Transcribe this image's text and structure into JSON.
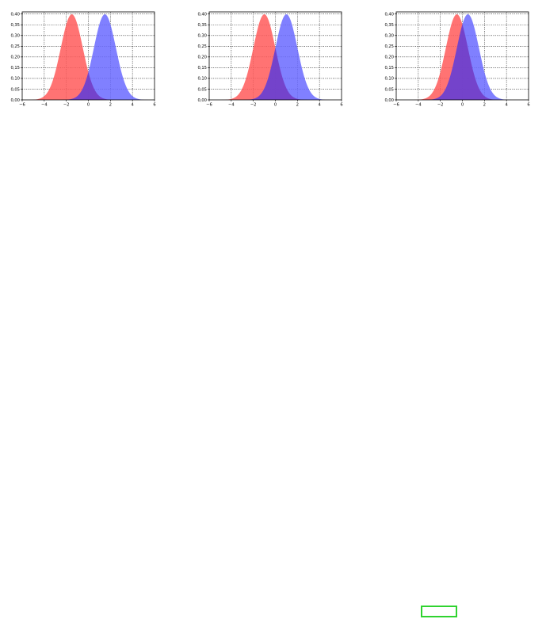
{
  "colors": {
    "curve_a": "#ff5a5a",
    "curve_b": "#6a6aff",
    "overlap": "#6a22b0",
    "frame": "#000000",
    "highlight": "#2fd32f"
  },
  "chart_data": [
    {
      "type": "area",
      "title": "",
      "xlabel": "",
      "ylabel": "",
      "xlim": [
        -6,
        6
      ],
      "ylim": [
        0,
        0.41
      ],
      "grid": true,
      "xticks": [
        -6,
        -4,
        -2,
        0,
        2,
        4,
        6
      ],
      "xtick_labels": [
        "−6",
        "−4",
        "−2",
        "0",
        "2",
        "4",
        "6"
      ],
      "yticks": [
        0,
        0.05,
        0.1,
        0.15,
        0.2,
        0.25,
        0.3,
        0.35,
        0.4
      ],
      "ytick_labels": [
        "0,00",
        "0,05",
        "0,10",
        "0,15",
        "0,20",
        "0,25",
        "0,30",
        "0,35",
        "0,40"
      ],
      "series": [
        {
          "distribution": "normal",
          "mean": -1.5,
          "std": 1,
          "color": "#ff5a5a"
        },
        {
          "distribution": "normal",
          "mean": 1.5,
          "std": 1,
          "color": "#6a6aff"
        }
      ]
    },
    {
      "type": "area",
      "title": "",
      "xlabel": "",
      "ylabel": "",
      "xlim": [
        -6,
        6
      ],
      "ylim": [
        0,
        0.41
      ],
      "grid": true,
      "xticks": [
        -6,
        -4,
        -2,
        0,
        2,
        4,
        6
      ],
      "xtick_labels": [
        "−6",
        "−4",
        "−2",
        "0",
        "2",
        "4",
        "6"
      ],
      "yticks": [
        0,
        0.05,
        0.1,
        0.15,
        0.2,
        0.25,
        0.3,
        0.35,
        0.4
      ],
      "ytick_labels": [
        "0,00",
        "0,05",
        "0,10",
        "0,15",
        "0,20",
        "0,25",
        "0,30",
        "0,35",
        "0,40"
      ],
      "series": [
        {
          "distribution": "normal",
          "mean": -1,
          "std": 1,
          "color": "#ff5a5a"
        },
        {
          "distribution": "normal",
          "mean": 1,
          "std": 1,
          "color": "#6a6aff"
        }
      ]
    },
    {
      "type": "area",
      "title": "",
      "xlabel": "",
      "ylabel": "",
      "xlim": [
        -6,
        6
      ],
      "ylim": [
        0,
        0.41
      ],
      "grid": true,
      "xticks": [
        -6,
        -4,
        -2,
        0,
        2,
        4,
        6
      ],
      "xtick_labels": [
        "−6",
        "−4",
        "−2",
        "0",
        "2",
        "4",
        "6"
      ],
      "yticks": [
        0,
        0.05,
        0.1,
        0.15,
        0.2,
        0.25,
        0.3,
        0.35,
        0.4
      ],
      "ytick_labels": [
        "0,00",
        "0,05",
        "0,10",
        "0,15",
        "0,20",
        "0,25",
        "0,30",
        "0,35",
        "0,40"
      ],
      "series": [
        {
          "distribution": "normal",
          "mean": -0.5,
          "std": 1,
          "color": "#ff5a5a"
        },
        {
          "distribution": "normal",
          "mean": 0.5,
          "std": 1,
          "color": "#6a6aff"
        }
      ]
    }
  ]
}
